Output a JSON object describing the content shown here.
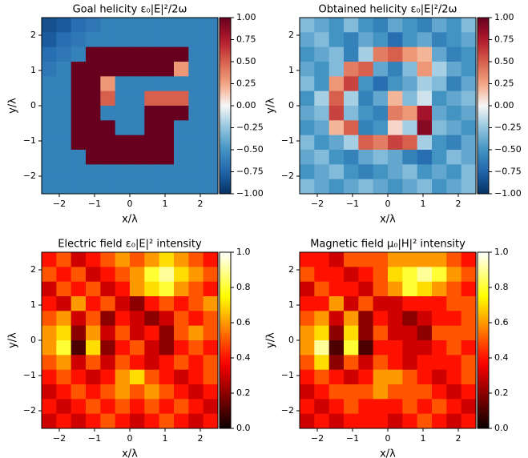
{
  "chart_data": [
    {
      "type": "heatmap",
      "title": "Goal helicity ε₀|E|²/2ω",
      "xlabel": "x/λ",
      "ylabel": "y/λ",
      "colormap": "RdBu_r",
      "xlim": [
        -2.5,
        2.5
      ],
      "ylim": [
        -2.5,
        2.5
      ],
      "xticks": [
        {
          "value": -2,
          "label": "−2"
        },
        {
          "value": -1,
          "label": "−1"
        },
        0,
        1,
        2
      ],
      "yticks": [
        {
          "value": -2,
          "label": "−2"
        },
        {
          "value": -1,
          "label": "−1"
        },
        0,
        1,
        2
      ],
      "clim": [
        -1,
        1
      ],
      "cticks": [
        {
          "value": -1,
          "label": "−1.00"
        },
        {
          "value": -0.75,
          "label": "−0.75"
        },
        {
          "value": -0.5,
          "label": "−0.50"
        },
        {
          "value": -0.25,
          "label": "−0.25"
        },
        {
          "value": 0,
          "label": "0.00"
        },
        {
          "value": 0.25,
          "label": "0.25"
        },
        {
          "value": 0.5,
          "label": "0.50"
        },
        {
          "value": 0.75,
          "label": "0.75"
        },
        {
          "value": 1,
          "label": "1.00"
        }
      ],
      "z": [
        [
          -0.85,
          -0.8,
          -0.7,
          -0.65,
          -0.6,
          -0.6,
          -0.6,
          -0.6,
          -0.6,
          -0.6,
          -0.6,
          -0.6
        ],
        [
          -0.8,
          -0.7,
          -0.65,
          -0.6,
          -0.6,
          -0.6,
          -0.6,
          -0.6,
          -0.6,
          -0.6,
          -0.6,
          -0.6
        ],
        [
          -0.7,
          -0.65,
          -0.6,
          1,
          1,
          1,
          1,
          1,
          1,
          1,
          -0.6,
          -0.6
        ],
        [
          -0.65,
          -0.6,
          1,
          1,
          1,
          1,
          1,
          1,
          1,
          0.3,
          -0.6,
          -0.6
        ],
        [
          -0.6,
          -0.6,
          1,
          1,
          0.3,
          -0.6,
          -0.6,
          -0.6,
          -0.6,
          -0.6,
          -0.6,
          -0.6
        ],
        [
          -0.6,
          -0.6,
          1,
          1,
          0.5,
          -0.6,
          -0.6,
          0.5,
          0.5,
          0.5,
          -0.6,
          -0.6
        ],
        [
          -0.6,
          -0.6,
          1,
          1,
          -0.6,
          -0.6,
          -0.6,
          1,
          1,
          1,
          -0.6,
          -0.6
        ],
        [
          -0.6,
          -0.6,
          1,
          1,
          1,
          -0.6,
          -0.6,
          1,
          1,
          -0.6,
          -0.6,
          -0.6
        ],
        [
          -0.6,
          -0.6,
          1,
          1,
          1,
          1,
          1,
          1,
          1,
          -0.6,
          -0.6,
          -0.6
        ],
        [
          -0.6,
          -0.6,
          -0.6,
          1,
          1,
          1,
          1,
          1,
          1,
          -0.6,
          -0.6,
          -0.6
        ],
        [
          -0.6,
          -0.6,
          -0.6,
          -0.6,
          -0.6,
          -0.6,
          -0.6,
          -0.6,
          -0.6,
          -0.6,
          -0.6,
          -0.6
        ],
        [
          -0.6,
          -0.6,
          -0.6,
          -0.6,
          -0.6,
          -0.6,
          -0.6,
          -0.6,
          -0.6,
          -0.6,
          -0.6,
          -0.6
        ]
      ]
    },
    {
      "type": "heatmap",
      "title": "Obtained helicity ε₀|E|²/2ω",
      "xlabel": "x/λ",
      "ylabel": "y/λ",
      "colormap": "RdBu_r",
      "xlim": [
        -2.5,
        2.5
      ],
      "ylim": [
        -2.5,
        2.5
      ],
      "xticks": [
        {
          "value": -2,
          "label": "−2"
        },
        {
          "value": -1,
          "label": "−1"
        },
        0,
        1,
        2
      ],
      "yticks": [
        {
          "value": -2,
          "label": "−2"
        },
        {
          "value": -1,
          "label": "−1"
        },
        0,
        1,
        2
      ],
      "clim": [
        -1,
        1
      ],
      "cticks": [
        {
          "value": -1,
          "label": "−1.00"
        },
        {
          "value": -0.75,
          "label": "−0.75"
        },
        {
          "value": -0.5,
          "label": "−0.50"
        },
        {
          "value": -0.25,
          "label": "−0.25"
        },
        {
          "value": 0,
          "label": "0.00"
        },
        {
          "value": 0.25,
          "label": "0.25"
        },
        {
          "value": 0.5,
          "label": "0.50"
        },
        {
          "value": 0.75,
          "label": "0.75"
        },
        {
          "value": 1,
          "label": "1.00"
        }
      ],
      "z": [
        [
          -0.3,
          -0.4,
          -0.5,
          -0.3,
          -0.5,
          -0.6,
          -0.4,
          -0.5,
          -0.6,
          -0.4,
          -0.5,
          -0.3
        ],
        [
          -0.4,
          -0.3,
          -0.5,
          -0.6,
          -0.4,
          -0.5,
          -0.7,
          -0.5,
          -0.4,
          -0.6,
          -0.5,
          -0.4
        ],
        [
          -0.5,
          -0.4,
          -0.3,
          -0.6,
          -0.2,
          0.4,
          0.5,
          0.3,
          0.2,
          -0.4,
          -0.6,
          -0.5
        ],
        [
          -0.4,
          -0.5,
          -0.3,
          0.4,
          0.5,
          -0.4,
          -0.6,
          -0.3,
          0.3,
          -0.2,
          -0.4,
          -0.5
        ],
        [
          -0.3,
          -0.5,
          0.3,
          0.6,
          -0.5,
          -0.7,
          -0.5,
          -0.4,
          -0.2,
          -0.3,
          -0.6,
          -0.4
        ],
        [
          -0.5,
          -0.2,
          0.5,
          -0.2,
          -0.6,
          -0.4,
          0.2,
          -0.3,
          -0.1,
          -0.5,
          -0.4,
          -0.3
        ],
        [
          -0.4,
          -0.3,
          0.6,
          -0.3,
          -0.5,
          -0.6,
          0.4,
          0.3,
          0.8,
          -0.4,
          -0.5,
          -0.4
        ],
        [
          -0.5,
          -0.4,
          0.2,
          0.5,
          -0.6,
          -0.5,
          0.1,
          -0.2,
          0.9,
          -0.3,
          -0.4,
          -0.5
        ],
        [
          -0.3,
          -0.5,
          -0.4,
          -0.2,
          0.5,
          0.4,
          0.6,
          0.5,
          -0.2,
          -0.5,
          -0.6,
          -0.4
        ],
        [
          -0.4,
          -0.3,
          -0.5,
          -0.6,
          -0.4,
          -0.3,
          -0.4,
          -0.6,
          -0.7,
          -0.5,
          -0.3,
          -0.4
        ],
        [
          -0.5,
          -0.4,
          -0.3,
          -0.5,
          -0.6,
          -0.5,
          -0.4,
          -0.3,
          -0.5,
          -0.4,
          -0.5,
          -0.3
        ],
        [
          -0.3,
          -0.4,
          -0.5,
          -0.4,
          -0.3,
          -0.4,
          -0.5,
          -0.4,
          -0.3,
          -0.5,
          -0.4,
          -0.3
        ]
      ]
    },
    {
      "type": "heatmap",
      "title": "Electric field ε₀|E|² intensity",
      "xlabel": "x/λ",
      "ylabel": "y/λ",
      "colormap": "hot",
      "xlim": [
        -2.5,
        2.5
      ],
      "ylim": [
        -2.5,
        2.5
      ],
      "xticks": [
        {
          "value": -2,
          "label": "−2"
        },
        {
          "value": -1,
          "label": "−1"
        },
        0,
        1,
        2
      ],
      "yticks": [
        {
          "value": -2,
          "label": "−2"
        },
        {
          "value": -1,
          "label": "−1"
        },
        0,
        1,
        2
      ],
      "clim": [
        0,
        1
      ],
      "cticks": [
        {
          "value": 0,
          "label": "0.0"
        },
        0.2,
        0.4,
        0.6,
        0.8,
        {
          "value": 1,
          "label": "1.0"
        }
      ],
      "z": [
        [
          0.4,
          0.5,
          0.3,
          0.4,
          0.5,
          0.6,
          0.5,
          0.6,
          0.7,
          0.6,
          0.5,
          0.4
        ],
        [
          0.5,
          0.4,
          0.5,
          0.3,
          0.4,
          0.5,
          0.6,
          0.8,
          0.9,
          0.7,
          0.6,
          0.5
        ],
        [
          0.3,
          0.5,
          0.4,
          0.5,
          0.3,
          0.4,
          0.6,
          0.7,
          0.8,
          0.6,
          0.5,
          0.4
        ],
        [
          0.4,
          0.3,
          0.6,
          0.4,
          0.5,
          0.3,
          0.2,
          0.4,
          0.5,
          0.4,
          0.5,
          0.6
        ],
        [
          0.5,
          0.6,
          0.3,
          0.5,
          0.2,
          0.4,
          0.3,
          0.2,
          0.3,
          0.5,
          0.4,
          0.5
        ],
        [
          0.6,
          0.7,
          0.2,
          0.6,
          0.3,
          0.5,
          0.3,
          0.4,
          0.2,
          0.5,
          0.6,
          0.5
        ],
        [
          0.6,
          0.8,
          0.1,
          0.7,
          0.2,
          0.4,
          0.5,
          0.3,
          0.2,
          0.4,
          0.5,
          0.4
        ],
        [
          0.5,
          0.6,
          0.3,
          0.5,
          0.3,
          0.5,
          0.4,
          0.3,
          0.4,
          0.5,
          0.4,
          0.5
        ],
        [
          0.4,
          0.5,
          0.4,
          0.3,
          0.4,
          0.6,
          0.7,
          0.5,
          0.4,
          0.3,
          0.4,
          0.5
        ],
        [
          0.3,
          0.4,
          0.5,
          0.4,
          0.5,
          0.6,
          0.5,
          0.6,
          0.5,
          0.4,
          0.3,
          0.4
        ],
        [
          0.4,
          0.3,
          0.4,
          0.5,
          0.4,
          0.5,
          0.4,
          0.5,
          0.4,
          0.5,
          0.4,
          0.3
        ],
        [
          0.3,
          0.4,
          0.3,
          0.4,
          0.5,
          0.4,
          0.3,
          0.4,
          0.5,
          0.4,
          0.3,
          0.4
        ]
      ]
    },
    {
      "type": "heatmap",
      "title": "Magnetic field μ₀|H|² intensity",
      "xlabel": "x/λ",
      "ylabel": "y/λ",
      "colormap": "hot",
      "xlim": [
        -2.5,
        2.5
      ],
      "ylim": [
        -2.5,
        2.5
      ],
      "xticks": [
        {
          "value": -2,
          "label": "−2"
        },
        {
          "value": -1,
          "label": "−1"
        },
        0,
        1,
        2
      ],
      "yticks": [
        {
          "value": -2,
          "label": "−2"
        },
        {
          "value": -1,
          "label": "−1"
        },
        0,
        1,
        2
      ],
      "clim": [
        0,
        1
      ],
      "cticks": [
        {
          "value": 0,
          "label": "0.0"
        },
        0.2,
        0.4,
        0.6,
        0.8,
        {
          "value": 1,
          "label": "1.0"
        }
      ],
      "z": [
        [
          0.4,
          0.4,
          0.3,
          0.5,
          0.5,
          0.5,
          0.6,
          0.6,
          0.6,
          0.6,
          0.5,
          0.4
        ],
        [
          0.5,
          0.4,
          0.4,
          0.3,
          0.4,
          0.5,
          0.7,
          0.8,
          0.9,
          0.8,
          0.6,
          0.5
        ],
        [
          0.3,
          0.5,
          0.4,
          0.4,
          0.3,
          0.5,
          0.6,
          0.8,
          0.7,
          0.6,
          0.5,
          0.4
        ],
        [
          0.4,
          0.4,
          0.6,
          0.3,
          0.5,
          0.3,
          0.3,
          0.4,
          0.4,
          0.4,
          0.5,
          0.5
        ],
        [
          0.5,
          0.6,
          0.3,
          0.6,
          0.2,
          0.4,
          0.3,
          0.2,
          0.3,
          0.4,
          0.4,
          0.5
        ],
        [
          0.6,
          0.7,
          0.2,
          0.7,
          0.2,
          0.5,
          0.3,
          0.3,
          0.2,
          0.5,
          0.5,
          0.5
        ],
        [
          0.6,
          0.9,
          0.1,
          0.8,
          0.1,
          0.4,
          0.4,
          0.3,
          0.3,
          0.4,
          0.5,
          0.4
        ],
        [
          0.5,
          0.7,
          0.2,
          0.5,
          0.3,
          0.5,
          0.4,
          0.3,
          0.4,
          0.4,
          0.4,
          0.5
        ],
        [
          0.4,
          0.5,
          0.4,
          0.3,
          0.4,
          0.6,
          0.6,
          0.5,
          0.4,
          0.3,
          0.4,
          0.5
        ],
        [
          0.3,
          0.4,
          0.5,
          0.5,
          0.5,
          0.6,
          0.5,
          0.5,
          0.5,
          0.4,
          0.3,
          0.4
        ],
        [
          0.4,
          0.3,
          0.4,
          0.5,
          0.4,
          0.4,
          0.4,
          0.5,
          0.4,
          0.5,
          0.4,
          0.3
        ],
        [
          0.3,
          0.4,
          0.3,
          0.4,
          0.4,
          0.4,
          0.3,
          0.4,
          0.5,
          0.4,
          0.3,
          0.4
        ]
      ]
    }
  ]
}
